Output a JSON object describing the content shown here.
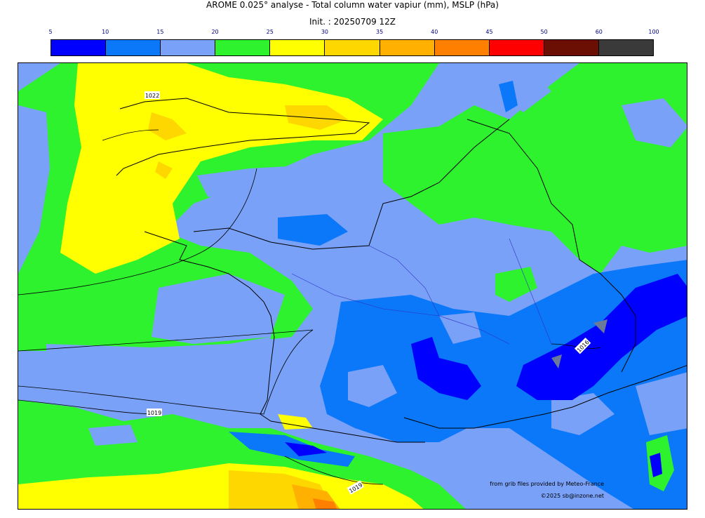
{
  "title": "AROME 0.025° analyse - Total column water vapiur (mm), MSLP (hPa)",
  "subtitle": "Init. : 20250709 12Z",
  "colorbar": {
    "ticks": [
      "5",
      "10",
      "15",
      "20",
      "25",
      "30",
      "35",
      "40",
      "45",
      "50",
      "60",
      "100"
    ],
    "colors": [
      "#0000ff",
      "#0a78f8",
      "#7aa1f8",
      "#2ef22e",
      "#ffff00",
      "#ffd700",
      "#ffb000",
      "#ff8000",
      "#ff0000",
      "#6b0f05",
      "#3a3a3a"
    ]
  },
  "isobars": [
    {
      "label": "1022"
    },
    {
      "label": "1019"
    },
    {
      "label": "1019"
    },
    {
      "label": "1016"
    }
  ],
  "credits": {
    "source": "from grib files provided by Meteo-France",
    "copyright": "©2025 sb@inzone.net"
  }
}
